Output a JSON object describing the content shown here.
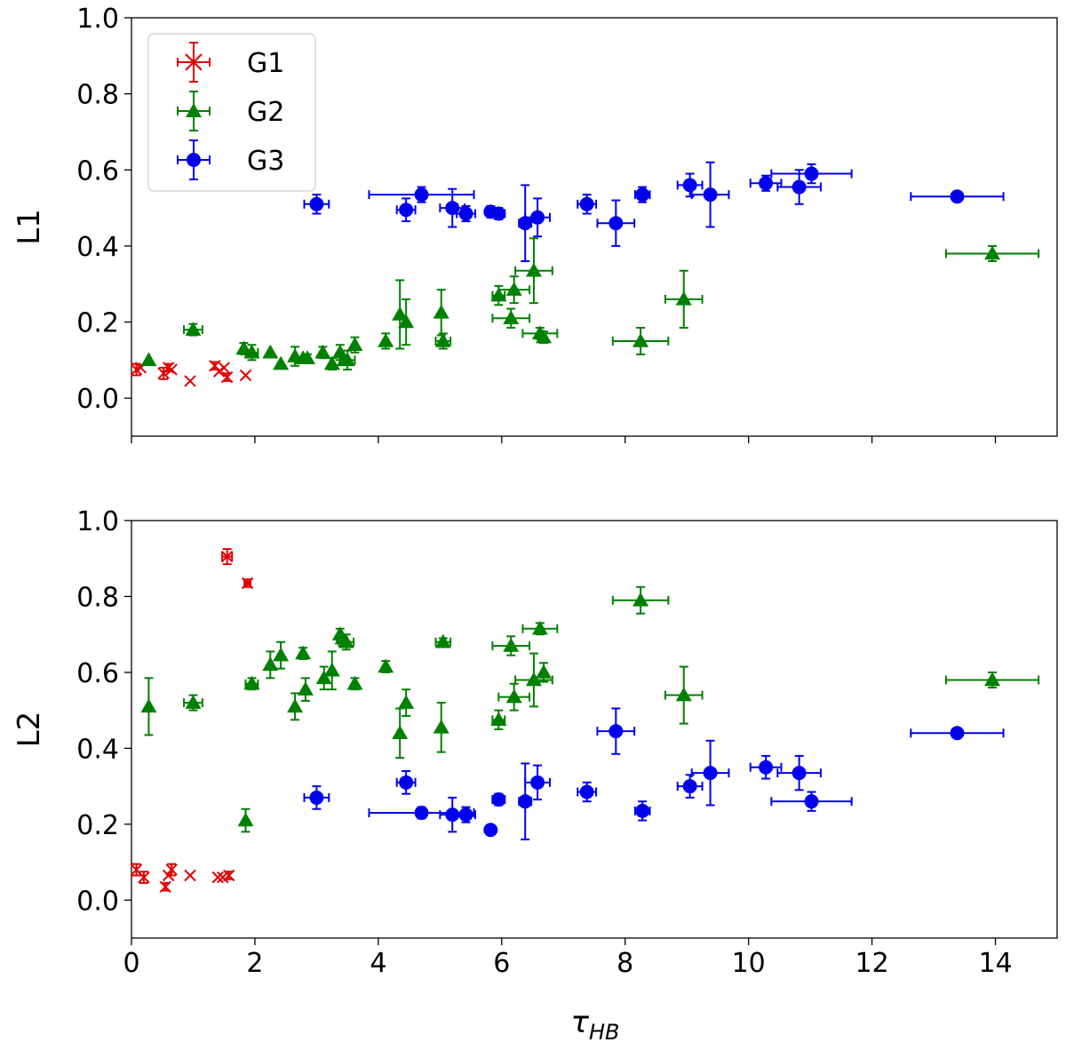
{
  "chart_data": [
    {
      "type": "scatter",
      "panel": "top",
      "xlabel": "τHB",
      "xlabel_main": "τ",
      "xlabel_sub": "HB",
      "ylabel": "L1",
      "xlim": [
        0,
        15
      ],
      "ylim": [
        -0.1,
        1.0
      ],
      "xticks": [
        0,
        2,
        4,
        6,
        8,
        10,
        12,
        14
      ],
      "yticks": [
        "0.0",
        "0.2",
        "0.4",
        "0.6",
        "0.8",
        "1.0"
      ],
      "show_x_tick_labels": false,
      "legend": {
        "position": "top-left",
        "entries": [
          {
            "label": "G1",
            "color": "#e00000",
            "marker": "x"
          },
          {
            "label": "G2",
            "color": "#008000",
            "marker": "triangle"
          },
          {
            "label": "G3",
            "color": "#0000ee",
            "marker": "circle"
          }
        ]
      },
      "series": [
        {
          "name": "G1",
          "color": "#e00000",
          "marker": "x",
          "points": [
            {
              "x": 0.08,
              "y": 0.075,
              "xerr": 0,
              "yerr": 0.015
            },
            {
              "x": 0.15,
              "y": 0.08,
              "xerr": 0,
              "yerr": 0
            },
            {
              "x": 0.52,
              "y": 0.065,
              "xerr": 0,
              "yerr": 0.015
            },
            {
              "x": 0.6,
              "y": 0.08,
              "xerr": 0,
              "yerr": 0.01
            },
            {
              "x": 0.65,
              "y": 0.075,
              "xerr": 0,
              "yerr": 0
            },
            {
              "x": 0.95,
              "y": 0.045,
              "xerr": 0,
              "yerr": 0
            },
            {
              "x": 1.35,
              "y": 0.085,
              "xerr": 0,
              "yerr": 0.01
            },
            {
              "x": 1.42,
              "y": 0.07,
              "xerr": 0,
              "yerr": 0
            },
            {
              "x": 1.5,
              "y": 0.08,
              "xerr": 0,
              "yerr": 0
            },
            {
              "x": 1.55,
              "y": 0.055,
              "xerr": 0,
              "yerr": 0.01
            },
            {
              "x": 1.85,
              "y": 0.06,
              "xerr": 0,
              "yerr": 0
            }
          ]
        },
        {
          "name": "G2",
          "color": "#008000",
          "marker": "triangle",
          "points": [
            {
              "x": 0.28,
              "y": 0.1,
              "xerr": 0,
              "yerr": 0
            },
            {
              "x": 1.0,
              "y": 0.18,
              "xerr": 0.15,
              "yerr": 0.015
            },
            {
              "x": 1.82,
              "y": 0.13,
              "xerr": 0,
              "yerr": 0.015
            },
            {
              "x": 1.95,
              "y": 0.12,
              "xerr": 0.1,
              "yerr": 0.02
            },
            {
              "x": 2.25,
              "y": 0.12,
              "xerr": 0,
              "yerr": 0
            },
            {
              "x": 2.42,
              "y": 0.09,
              "xerr": 0,
              "yerr": 0
            },
            {
              "x": 2.65,
              "y": 0.11,
              "xerr": 0,
              "yerr": 0.025
            },
            {
              "x": 2.78,
              "y": 0.105,
              "xerr": 0,
              "yerr": 0
            },
            {
              "x": 2.85,
              "y": 0.105,
              "xerr": 0,
              "yerr": 0.01
            },
            {
              "x": 3.1,
              "y": 0.12,
              "xerr": 0,
              "yerr": 0.015
            },
            {
              "x": 3.25,
              "y": 0.09,
              "xerr": 0,
              "yerr": 0.015
            },
            {
              "x": 3.38,
              "y": 0.12,
              "xerr": 0,
              "yerr": 0.02
            },
            {
              "x": 3.45,
              "y": 0.1,
              "xerr": 0,
              "yerr": 0
            },
            {
              "x": 3.5,
              "y": 0.1,
              "xerr": 0.12,
              "yerr": 0.025
            },
            {
              "x": 3.62,
              "y": 0.14,
              "xerr": 0,
              "yerr": 0.02
            },
            {
              "x": 4.12,
              "y": 0.15,
              "xerr": 0,
              "yerr": 0.02
            },
            {
              "x": 4.35,
              "y": 0.22,
              "xerr": 0,
              "yerr": 0.09
            },
            {
              "x": 4.45,
              "y": 0.2,
              "xerr": 0,
              "yerr": 0.06
            },
            {
              "x": 5.02,
              "y": 0.225,
              "xerr": 0,
              "yerr": 0.06
            },
            {
              "x": 5.05,
              "y": 0.15,
              "xerr": 0.12,
              "yerr": 0.02
            },
            {
              "x": 5.95,
              "y": 0.27,
              "xerr": 0.1,
              "yerr": 0.025
            },
            {
              "x": 6.15,
              "y": 0.21,
              "xerr": 0.3,
              "yerr": 0.025
            },
            {
              "x": 6.2,
              "y": 0.285,
              "xerr": 0.25,
              "yerr": 0.035
            },
            {
              "x": 6.52,
              "y": 0.335,
              "xerr": 0.3,
              "yerr": 0.085
            },
            {
              "x": 6.62,
              "y": 0.17,
              "xerr": 0.28,
              "yerr": 0.015
            },
            {
              "x": 6.68,
              "y": 0.16,
              "xerr": 0,
              "yerr": 0.015
            },
            {
              "x": 8.25,
              "y": 0.15,
              "xerr": 0.45,
              "yerr": 0.035
            },
            {
              "x": 8.95,
              "y": 0.26,
              "xerr": 0.3,
              "yerr": 0.075
            },
            {
              "x": 13.95,
              "y": 0.38,
              "xerr": 0.75,
              "yerr": 0.02
            }
          ]
        },
        {
          "name": "G3",
          "color": "#0000ee",
          "marker": "circle",
          "points": [
            {
              "x": 3.0,
              "y": 0.51,
              "xerr": 0.2,
              "yerr": 0.025
            },
            {
              "x": 4.45,
              "y": 0.495,
              "xerr": 0.15,
              "yerr": 0.03
            },
            {
              "x": 4.7,
              "y": 0.535,
              "xerr": 0.85,
              "yerr": 0.02
            },
            {
              "x": 5.2,
              "y": 0.5,
              "xerr": 0.2,
              "yerr": 0.05
            },
            {
              "x": 5.42,
              "y": 0.485,
              "xerr": 0.15,
              "yerr": 0.02
            },
            {
              "x": 5.82,
              "y": 0.49,
              "xerr": 0.08,
              "yerr": 0.015
            },
            {
              "x": 5.95,
              "y": 0.485,
              "xerr": 0.1,
              "yerr": 0.015
            },
            {
              "x": 6.38,
              "y": 0.46,
              "xerr": 0.1,
              "yerr": 0.1
            },
            {
              "x": 6.58,
              "y": 0.475,
              "xerr": 0.2,
              "yerr": 0.05
            },
            {
              "x": 7.38,
              "y": 0.51,
              "xerr": 0.15,
              "yerr": 0.025
            },
            {
              "x": 7.85,
              "y": 0.46,
              "xerr": 0.3,
              "yerr": 0.06
            },
            {
              "x": 8.28,
              "y": 0.535,
              "xerr": 0.12,
              "yerr": 0.02
            },
            {
              "x": 9.05,
              "y": 0.56,
              "xerr": 0.2,
              "yerr": 0.03
            },
            {
              "x": 9.38,
              "y": 0.535,
              "xerr": 0.3,
              "yerr": 0.085
            },
            {
              "x": 10.28,
              "y": 0.565,
              "xerr": 0.25,
              "yerr": 0.02
            },
            {
              "x": 10.82,
              "y": 0.555,
              "xerr": 0.35,
              "yerr": 0.045
            },
            {
              "x": 11.02,
              "y": 0.59,
              "xerr": 0.65,
              "yerr": 0.025
            },
            {
              "x": 13.38,
              "y": 0.53,
              "xerr": 0.75,
              "yerr": 0
            }
          ]
        }
      ]
    },
    {
      "type": "scatter",
      "panel": "bottom",
      "xlabel": "τHB",
      "xlabel_main": "τ",
      "xlabel_sub": "HB",
      "ylabel": "L2",
      "xlim": [
        0,
        15
      ],
      "ylim": [
        -0.1,
        1.0
      ],
      "xticks": [
        0,
        2,
        4,
        6,
        8,
        10,
        12,
        14
      ],
      "yticks": [
        "0.0",
        "0.2",
        "0.4",
        "0.6",
        "0.8",
        "1.0"
      ],
      "show_x_tick_labels": true,
      "series": [
        {
          "name": "G1",
          "color": "#e00000",
          "marker": "x",
          "points": [
            {
              "x": 0.08,
              "y": 0.08,
              "xerr": 0,
              "yerr": 0.015
            },
            {
              "x": 0.2,
              "y": 0.06,
              "xerr": 0,
              "yerr": 0.015
            },
            {
              "x": 0.55,
              "y": 0.035,
              "xerr": 0,
              "yerr": 0.01
            },
            {
              "x": 0.6,
              "y": 0.065,
              "xerr": 0,
              "yerr": 0
            },
            {
              "x": 0.65,
              "y": 0.08,
              "xerr": 0,
              "yerr": 0.015
            },
            {
              "x": 0.95,
              "y": 0.065,
              "xerr": 0,
              "yerr": 0
            },
            {
              "x": 1.4,
              "y": 0.06,
              "xerr": 0,
              "yerr": 0
            },
            {
              "x": 1.48,
              "y": 0.06,
              "xerr": 0,
              "yerr": 0
            },
            {
              "x": 1.58,
              "y": 0.065,
              "xerr": 0,
              "yerr": 0.01
            },
            {
              "x": 1.55,
              "y": 0.905,
              "xerr": 0.08,
              "yerr": 0.02
            },
            {
              "x": 1.88,
              "y": 0.835,
              "xerr": 0.05,
              "yerr": 0.01
            }
          ]
        },
        {
          "name": "G2",
          "color": "#008000",
          "marker": "triangle",
          "points": [
            {
              "x": 0.28,
              "y": 0.51,
              "xerr": 0,
              "yerr": 0.075
            },
            {
              "x": 1.0,
              "y": 0.52,
              "xerr": 0.15,
              "yerr": 0.02
            },
            {
              "x": 1.85,
              "y": 0.21,
              "xerr": 0,
              "yerr": 0.03
            },
            {
              "x": 1.95,
              "y": 0.57,
              "xerr": 0.1,
              "yerr": 0.015
            },
            {
              "x": 2.25,
              "y": 0.62,
              "xerr": 0,
              "yerr": 0.035
            },
            {
              "x": 2.42,
              "y": 0.645,
              "xerr": 0,
              "yerr": 0.035
            },
            {
              "x": 2.65,
              "y": 0.51,
              "xerr": 0,
              "yerr": 0.035
            },
            {
              "x": 2.78,
              "y": 0.65,
              "xerr": 0,
              "yerr": 0.015
            },
            {
              "x": 2.82,
              "y": 0.555,
              "xerr": 0,
              "yerr": 0.03
            },
            {
              "x": 3.12,
              "y": 0.585,
              "xerr": 0,
              "yerr": 0.03
            },
            {
              "x": 3.25,
              "y": 0.605,
              "xerr": 0,
              "yerr": 0.05
            },
            {
              "x": 3.38,
              "y": 0.7,
              "xerr": 0,
              "yerr": 0.015
            },
            {
              "x": 3.42,
              "y": 0.69,
              "xerr": 0,
              "yerr": 0
            },
            {
              "x": 3.48,
              "y": 0.68,
              "xerr": 0.12,
              "yerr": 0.02
            },
            {
              "x": 3.62,
              "y": 0.57,
              "xerr": 0,
              "yerr": 0.015
            },
            {
              "x": 4.12,
              "y": 0.615,
              "xerr": 0,
              "yerr": 0.015
            },
            {
              "x": 4.35,
              "y": 0.44,
              "xerr": 0,
              "yerr": 0.065
            },
            {
              "x": 4.45,
              "y": 0.52,
              "xerr": 0,
              "yerr": 0.035
            },
            {
              "x": 5.02,
              "y": 0.455,
              "xerr": 0,
              "yerr": 0.065
            },
            {
              "x": 5.05,
              "y": 0.68,
              "xerr": 0.12,
              "yerr": 0.01
            },
            {
              "x": 5.95,
              "y": 0.475,
              "xerr": 0.1,
              "yerr": 0.025
            },
            {
              "x": 6.15,
              "y": 0.67,
              "xerr": 0.3,
              "yerr": 0.025
            },
            {
              "x": 6.2,
              "y": 0.535,
              "xerr": 0.25,
              "yerr": 0.035
            },
            {
              "x": 6.52,
              "y": 0.58,
              "xerr": 0.3,
              "yerr": 0.07
            },
            {
              "x": 6.62,
              "y": 0.715,
              "xerr": 0.28,
              "yerr": 0.015
            },
            {
              "x": 6.68,
              "y": 0.6,
              "xerr": 0,
              "yerr": 0.025
            },
            {
              "x": 8.25,
              "y": 0.79,
              "xerr": 0.45,
              "yerr": 0.035
            },
            {
              "x": 8.95,
              "y": 0.54,
              "xerr": 0.3,
              "yerr": 0.075
            },
            {
              "x": 13.95,
              "y": 0.58,
              "xerr": 0.75,
              "yerr": 0.02
            }
          ]
        },
        {
          "name": "G3",
          "color": "#0000ee",
          "marker": "circle",
          "points": [
            {
              "x": 3.0,
              "y": 0.27,
              "xerr": 0.2,
              "yerr": 0.03
            },
            {
              "x": 4.45,
              "y": 0.31,
              "xerr": 0.15,
              "yerr": 0.03
            },
            {
              "x": 4.7,
              "y": 0.23,
              "xerr": 0.85,
              "yerr": 0.015
            },
            {
              "x": 5.2,
              "y": 0.225,
              "xerr": 0.2,
              "yerr": 0.045
            },
            {
              "x": 5.42,
              "y": 0.225,
              "xerr": 0.15,
              "yerr": 0.02
            },
            {
              "x": 5.82,
              "y": 0.185,
              "xerr": 0,
              "yerr": 0
            },
            {
              "x": 5.95,
              "y": 0.265,
              "xerr": 0.1,
              "yerr": 0.015
            },
            {
              "x": 6.38,
              "y": 0.26,
              "xerr": 0.1,
              "yerr": 0.1
            },
            {
              "x": 6.58,
              "y": 0.31,
              "xerr": 0.2,
              "yerr": 0.045
            },
            {
              "x": 7.38,
              "y": 0.285,
              "xerr": 0.15,
              "yerr": 0.025
            },
            {
              "x": 7.85,
              "y": 0.445,
              "xerr": 0.3,
              "yerr": 0.06
            },
            {
              "x": 8.28,
              "y": 0.235,
              "xerr": 0.12,
              "yerr": 0.025
            },
            {
              "x": 9.05,
              "y": 0.3,
              "xerr": 0.2,
              "yerr": 0.03
            },
            {
              "x": 9.38,
              "y": 0.335,
              "xerr": 0.3,
              "yerr": 0.085
            },
            {
              "x": 10.28,
              "y": 0.35,
              "xerr": 0.25,
              "yerr": 0.03
            },
            {
              "x": 10.82,
              "y": 0.335,
              "xerr": 0.35,
              "yerr": 0.045
            },
            {
              "x": 11.02,
              "y": 0.26,
              "xerr": 0.65,
              "yerr": 0.025
            },
            {
              "x": 13.38,
              "y": 0.44,
              "xerr": 0.75,
              "yerr": 0
            }
          ]
        }
      ]
    }
  ]
}
